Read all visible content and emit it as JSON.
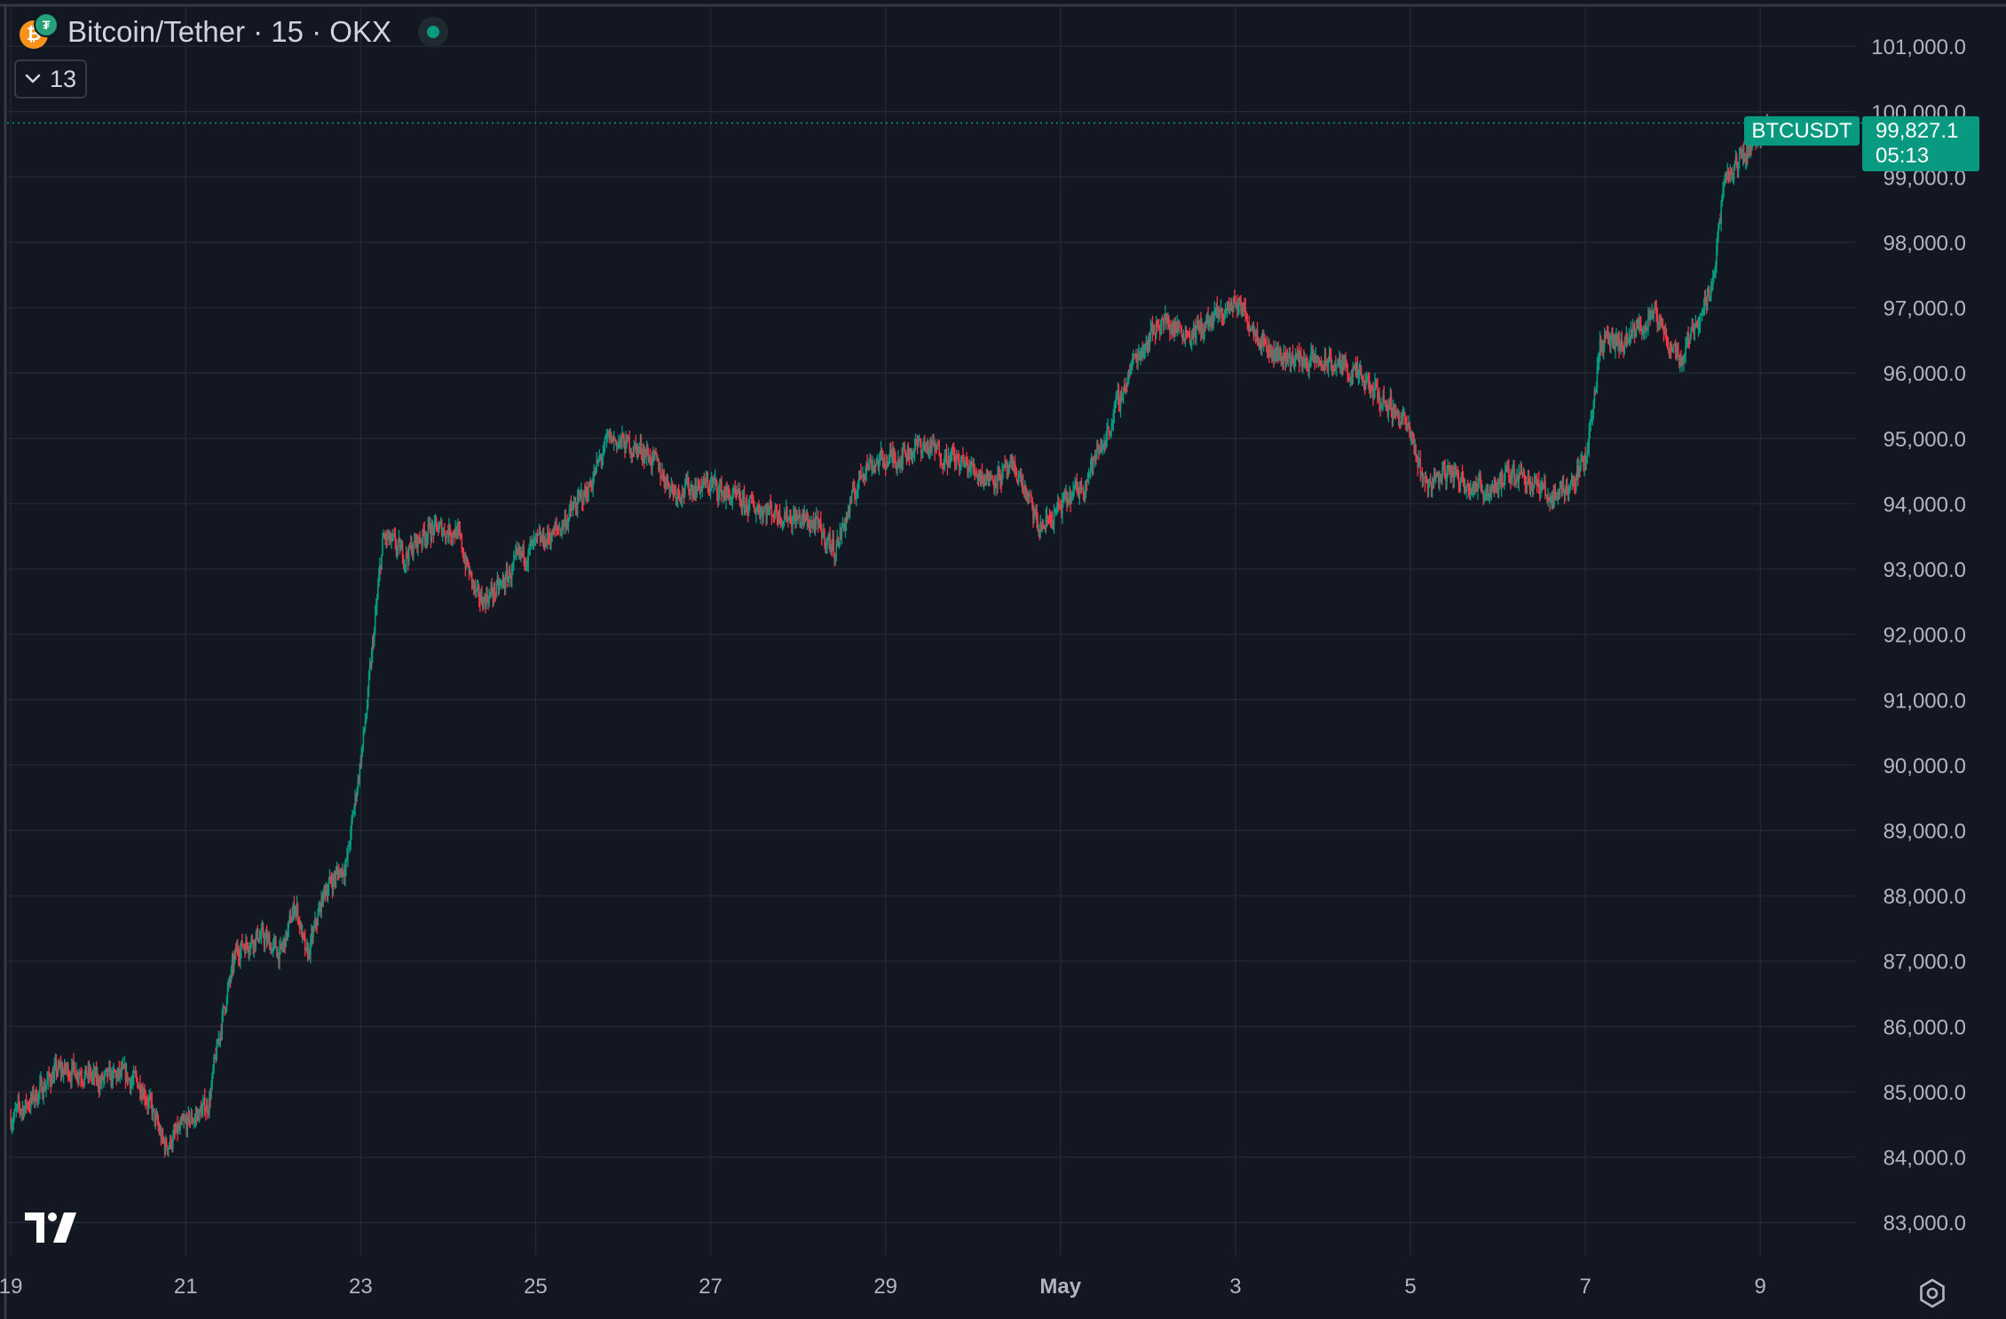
{
  "legend": {
    "title": "Bitcoin/Tether · 15 · OKX",
    "indicator_count": "13",
    "icons": [
      "bitcoin-icon",
      "tether-icon",
      "market-open-dot-icon",
      "chevron-down-icon"
    ],
    "status_color": "#089981"
  },
  "colors": {
    "background": "#131722",
    "grid": "#232734",
    "axis_text": "#b2b5be",
    "up": "#089981",
    "down": "#f23645",
    "price_line": "#089981",
    "border": "#363a45"
  },
  "footer": {
    "logo": "tradingview-logo",
    "settings_icon": "settings-icon"
  },
  "chart_data": {
    "type": "candlestick",
    "symbol": "BTCUSDT",
    "interval": "15",
    "exchange": "OKX",
    "last_price": 99827.1,
    "last_price_label": "99,827.1",
    "countdown": "05:13",
    "ylim": [
      82500,
      101600
    ],
    "ylim_label_top": "101,000.0",
    "y_ticks": [
      101000,
      100000,
      99000,
      98000,
      97000,
      96000,
      95000,
      94000,
      93000,
      92000,
      91000,
      90000,
      89000,
      88000,
      87000,
      86000,
      85000,
      84000,
      83000
    ],
    "y_tick_labels": [
      "101,000.0",
      "100,000.0",
      "99,000.0",
      "98,000.0",
      "97,000.0",
      "96,000.0",
      "95,000.0",
      "94,000.0",
      "93,000.0",
      "92,000.0",
      "91,000.0",
      "90,000.0",
      "89,000.0",
      "88,000.0",
      "87,000.0",
      "86,000.0",
      "85,000.0",
      "84,000.0",
      "83,000.0"
    ],
    "x_range": [
      "2025-04-18T23:00",
      "2025-05-10T02:00"
    ],
    "x_ticks": [
      "2025-04-19",
      "2025-04-21",
      "2025-04-23",
      "2025-04-25",
      "2025-04-27",
      "2025-04-29",
      "2025-05-01",
      "2025-05-03",
      "2025-05-05",
      "2025-05-07",
      "2025-05-09"
    ],
    "x_tick_labels": [
      "19",
      "21",
      "23",
      "25",
      "27",
      "29",
      "May",
      "3",
      "5",
      "7",
      "9"
    ],
    "bold_x_tick": "May",
    "grid": true,
    "price_path": [
      [
        "2025-04-19T00:00",
        84600
      ],
      [
        "2025-04-19T06:00",
        84900
      ],
      [
        "2025-04-19T12:00",
        85300
      ],
      [
        "2025-04-19T18:00",
        85350
      ],
      [
        "2025-04-20T00:00",
        85150
      ],
      [
        "2025-04-20T06:00",
        85250
      ],
      [
        "2025-04-20T12:00",
        85100
      ],
      [
        "2025-04-20T18:00",
        84150
      ],
      [
        "2025-04-21T00:00",
        84500
      ],
      [
        "2025-04-21T06:00",
        84800
      ],
      [
        "2025-04-21T10:00",
        86200
      ],
      [
        "2025-04-21T14:00",
        87200
      ],
      [
        "2025-04-21T20:00",
        87400
      ],
      [
        "2025-04-22T02:00",
        87100
      ],
      [
        "2025-04-22T06:00",
        87900
      ],
      [
        "2025-04-22T09:00",
        87000
      ],
      [
        "2025-04-22T14:00",
        88100
      ],
      [
        "2025-04-22T20:00",
        88500
      ],
      [
        "2025-04-23T01:00",
        90600
      ],
      [
        "2025-04-23T06:00",
        93500
      ],
      [
        "2025-04-23T12:00",
        93200
      ],
      [
        "2025-04-23T18:00",
        93600
      ],
      [
        "2025-04-24T02:00",
        93600
      ],
      [
        "2025-04-24T08:00",
        92500
      ],
      [
        "2025-04-24T14:00",
        92700
      ],
      [
        "2025-04-24T20:00",
        93200
      ],
      [
        "2025-04-25T06:00",
        93600
      ],
      [
        "2025-04-25T14:00",
        94200
      ],
      [
        "2025-04-25T20:00",
        95000
      ],
      [
        "2025-04-26T06:00",
        94800
      ],
      [
        "2025-04-26T14:00",
        94200
      ],
      [
        "2025-04-27T00:00",
        94300
      ],
      [
        "2025-04-27T08:00",
        94000
      ],
      [
        "2025-04-27T16:00",
        93900
      ],
      [
        "2025-04-28T04:00",
        93700
      ],
      [
        "2025-04-28T10:00",
        93300
      ],
      [
        "2025-04-28T18:00",
        94600
      ],
      [
        "2025-04-29T02:00",
        94700
      ],
      [
        "2025-04-29T10:00",
        94900
      ],
      [
        "2025-04-29T18:00",
        94700
      ],
      [
        "2025-04-30T04:00",
        94400
      ],
      [
        "2025-04-30T12:00",
        94500
      ],
      [
        "2025-04-30T18:00",
        93600
      ],
      [
        "2025-05-01T06:00",
        94300
      ],
      [
        "2025-05-01T12:00",
        95000
      ],
      [
        "2025-05-01T20:00",
        96200
      ],
      [
        "2025-05-02T03:00",
        96800
      ],
      [
        "2025-05-02T12:00",
        96600
      ],
      [
        "2025-05-02T20:00",
        96900
      ],
      [
        "2025-05-03T00:00",
        97100
      ],
      [
        "2025-05-03T10:00",
        96300
      ],
      [
        "2025-05-03T18:00",
        96200
      ],
      [
        "2025-05-04T06:00",
        96100
      ],
      [
        "2025-05-04T14:00",
        95700
      ],
      [
        "2025-05-04T22:00",
        95300
      ],
      [
        "2025-05-05T04:00",
        94300
      ],
      [
        "2025-05-05T10:00",
        94500
      ],
      [
        "2025-05-05T20:00",
        94200
      ],
      [
        "2025-05-06T06:00",
        94500
      ],
      [
        "2025-05-06T14:00",
        94100
      ],
      [
        "2025-05-06T20:00",
        94300
      ],
      [
        "2025-05-07T00:00",
        94700
      ],
      [
        "2025-05-07T04:00",
        96500
      ],
      [
        "2025-05-07T10:00",
        96400
      ],
      [
        "2025-05-07T18:00",
        96900
      ],
      [
        "2025-05-08T02:00",
        96200
      ],
      [
        "2025-05-08T06:00",
        96800
      ],
      [
        "2025-05-08T10:00",
        97200
      ],
      [
        "2025-05-08T14:00",
        98900
      ],
      [
        "2025-05-08T20:00",
        99400
      ],
      [
        "2025-05-09T02:00",
        99827.1
      ]
    ]
  }
}
